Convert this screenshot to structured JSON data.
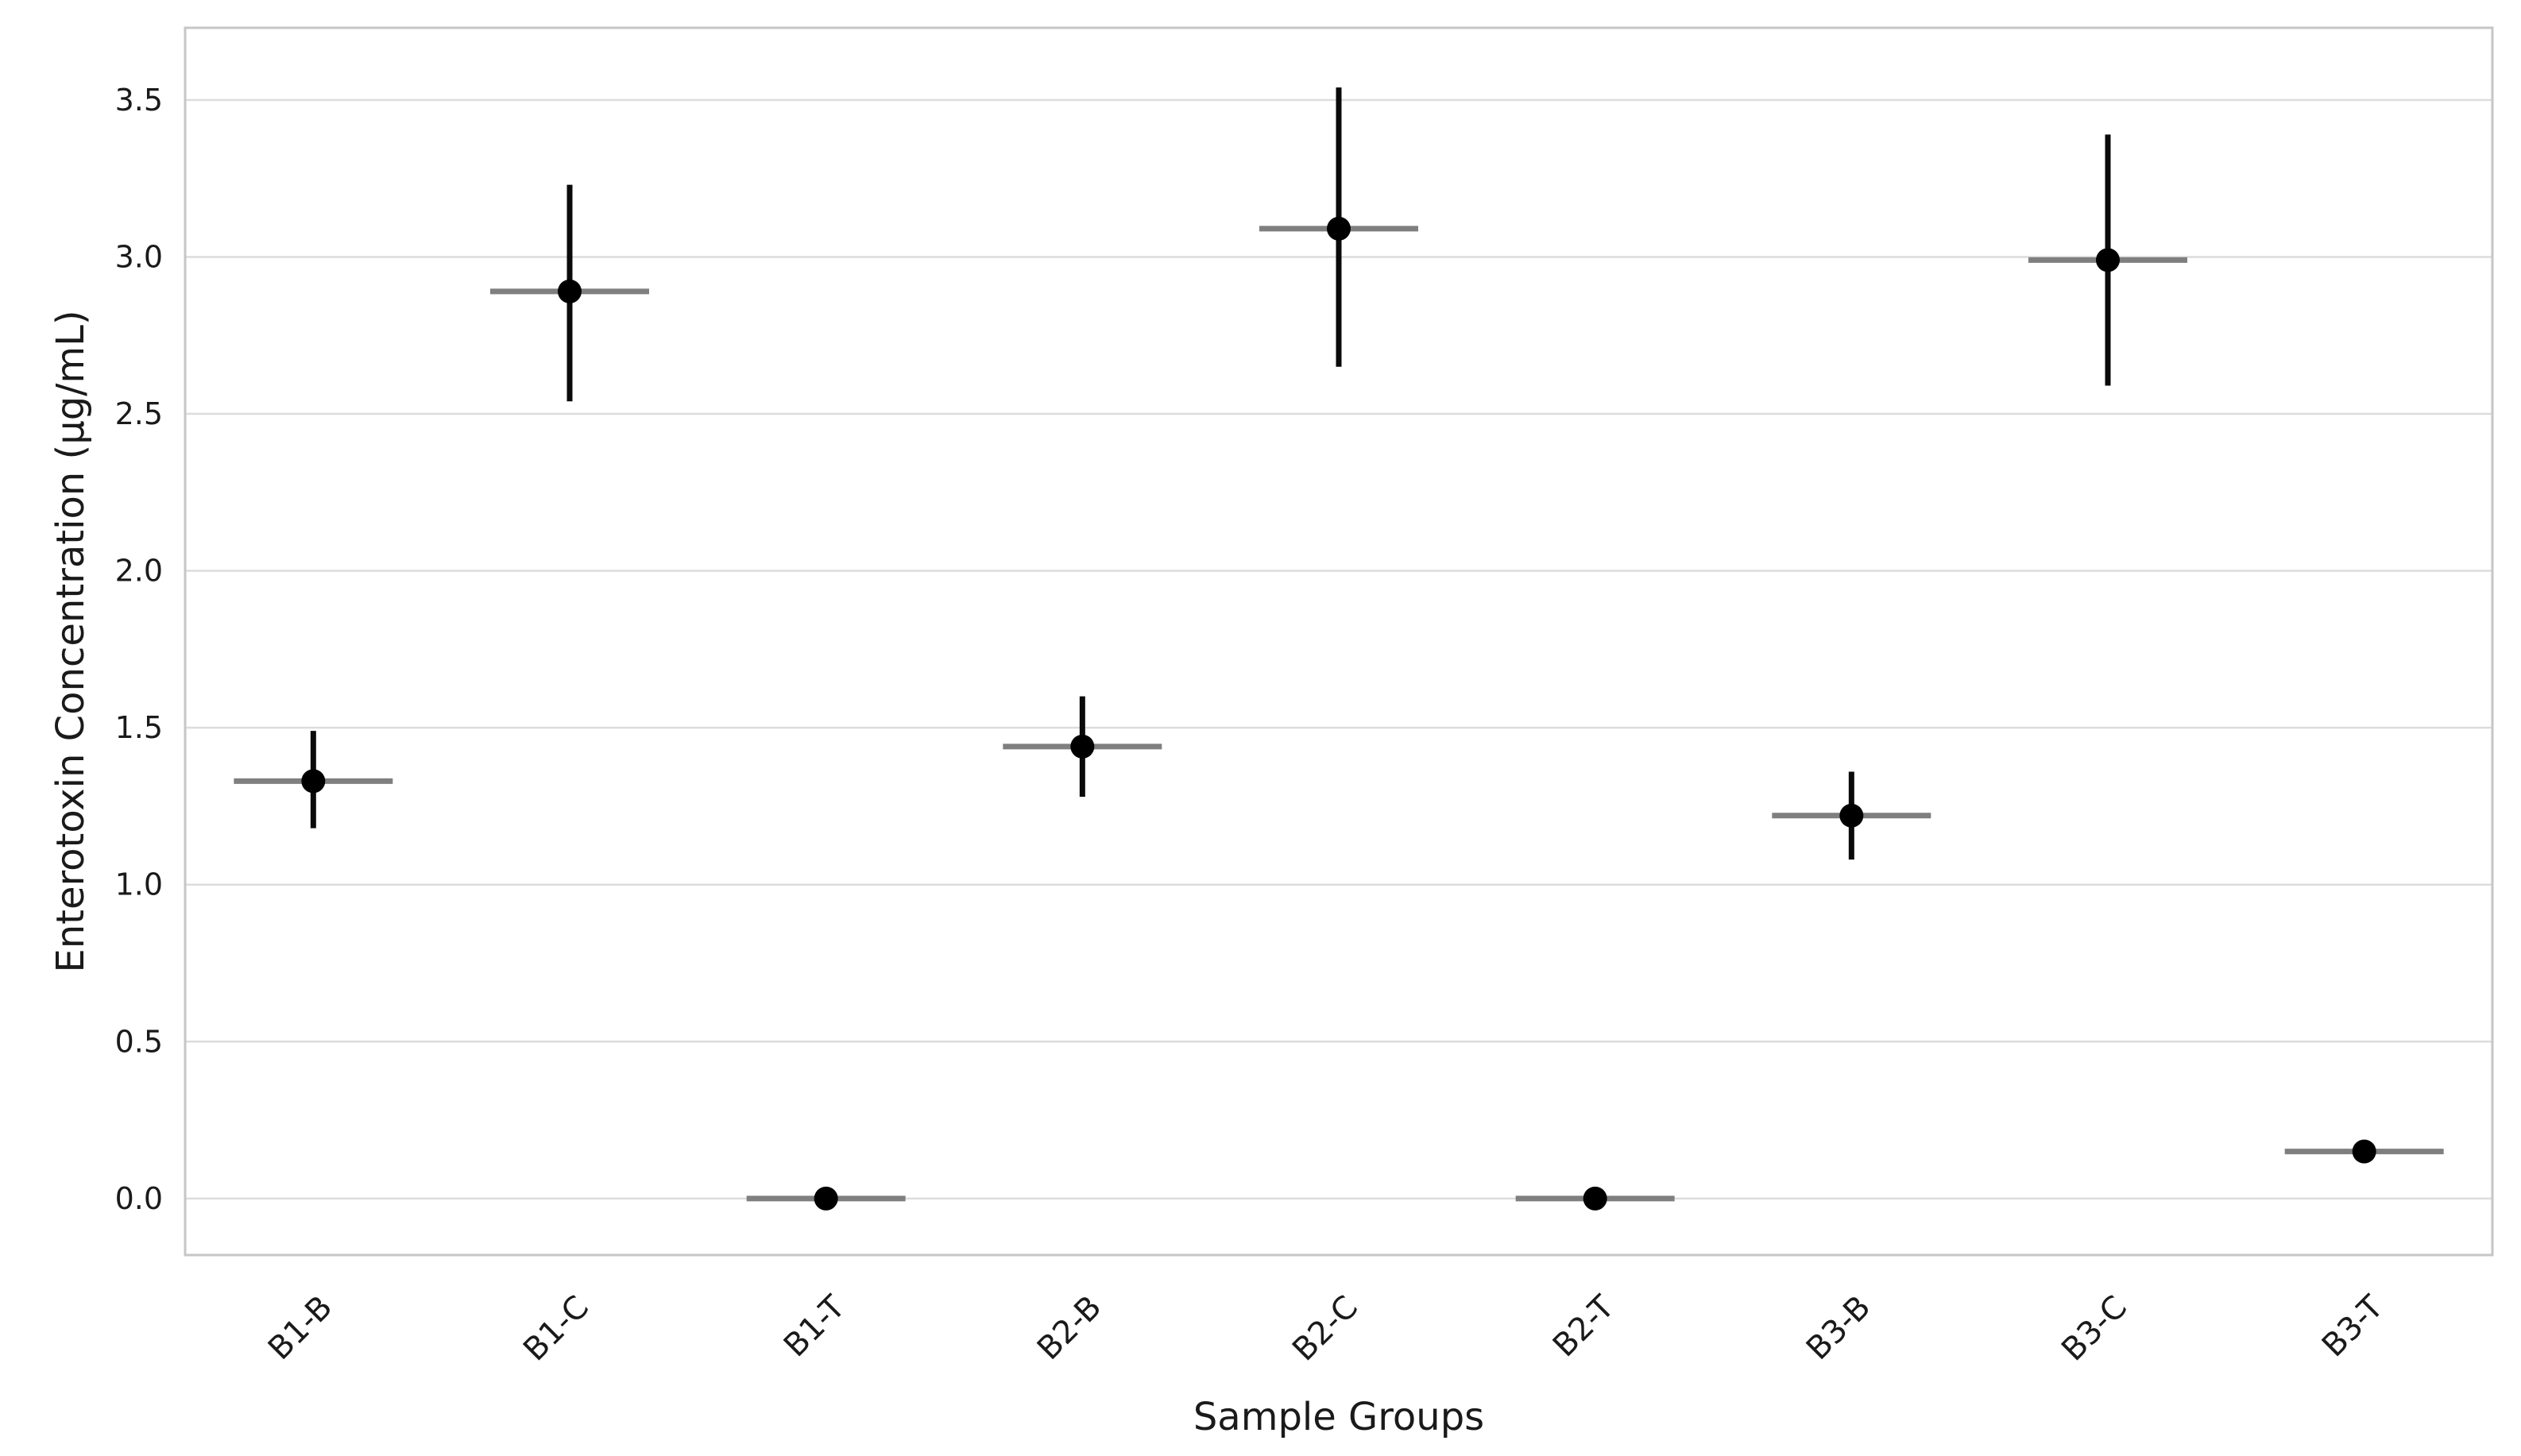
{
  "colors": {
    "background": "#ffffff",
    "marker": "#000000",
    "error_bar": "#0a0a0a",
    "group_mean_line": "#7f7f7f",
    "gridline": "#dcdcdc",
    "spine": "#c6c6c6",
    "text": "#1a1a1a"
  },
  "chart_data": {
    "type": "scatter",
    "subtype": "pointplot-with-error-bars",
    "title": "",
    "xlabel": "Sample Groups",
    "ylabel": "Enterotoxin Concentration (µg/mL)",
    "categories": [
      "B1-B",
      "B1-C",
      "B1-T",
      "B2-B",
      "B2-C",
      "B2-T",
      "B3-B",
      "B3-C",
      "B3-T"
    ],
    "series": [
      {
        "name": "mean_concentration",
        "values": [
          1.33,
          2.89,
          0.0,
          1.44,
          3.09,
          0.0,
          1.22,
          2.99,
          0.15
        ],
        "ci_low": [
          1.18,
          2.54,
          0.0,
          1.28,
          2.65,
          0.0,
          1.08,
          2.59,
          0.15
        ],
        "ci_high": [
          1.49,
          3.23,
          0.0,
          1.6,
          3.54,
          0.0,
          1.36,
          3.39,
          0.15
        ]
      }
    ],
    "yticks": [
      0.0,
      0.5,
      1.0,
      1.5,
      2.0,
      2.5,
      3.0,
      3.5
    ],
    "ytick_labels": [
      "0.0",
      "0.5",
      "1.0",
      "1.5",
      "2.0",
      "2.5",
      "3.0",
      "3.5"
    ],
    "ylim": [
      -0.18,
      3.73
    ],
    "grid": "horizontal",
    "legend_position": "none",
    "x_tick_rotation_deg": 45
  }
}
